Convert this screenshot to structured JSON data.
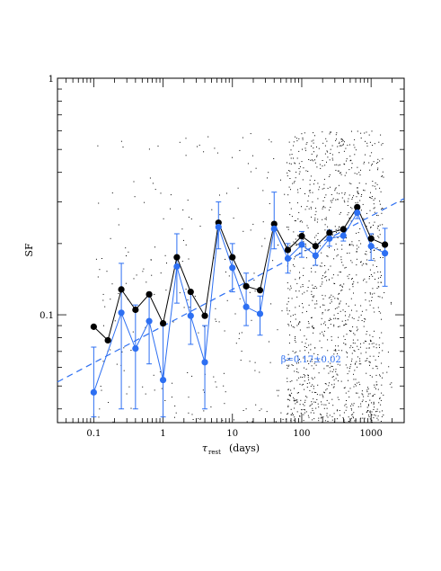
{
  "chart_data": {
    "type": "scatter",
    "title": "",
    "x_scale": "log",
    "y_scale": "log",
    "xlim": [
      0.03,
      3000
    ],
    "ylim": [
      0.035,
      1
    ],
    "xlabel": "τ",
    "xlabel_sub": "rest",
    "xlabel_unit": "(days)",
    "ylabel": "SF",
    "x_ticks": [
      {
        "value": 0.1,
        "label": "0.1"
      },
      {
        "value": 1,
        "label": "1"
      },
      {
        "value": 10,
        "label": "10"
      },
      {
        "value": 100,
        "label": "100"
      },
      {
        "value": 1000,
        "label": "1000"
      }
    ],
    "y_ticks": [
      {
        "value": 0.1,
        "label": "0.1"
      },
      {
        "value": 1,
        "label": "1"
      }
    ],
    "series": [
      {
        "color": "#000000",
        "x": [
          0.1,
          0.16,
          0.25,
          0.4,
          0.63,
          1.0,
          1.58,
          2.5,
          4.0,
          6.3,
          10,
          15.8,
          25,
          40,
          63,
          100,
          158,
          251,
          398,
          631,
          1000,
          1585
        ],
        "y": [
          0.089,
          0.078,
          0.128,
          0.105,
          0.122,
          0.092,
          0.175,
          0.125,
          0.099,
          0.245,
          0.175,
          0.132,
          0.127,
          0.242,
          0.188,
          0.215,
          0.195,
          0.222,
          0.23,
          0.285,
          0.21,
          0.198
        ]
      },
      {
        "color": "#2d6ff2",
        "x": [
          0.1,
          0.25,
          0.4,
          0.63,
          1.0,
          1.58,
          2.5,
          4.0,
          6.3,
          10,
          15.8,
          25,
          40,
          63,
          100,
          158,
          251,
          398,
          631,
          1000,
          1585
        ],
        "y": [
          0.047,
          0.102,
          0.072,
          0.094,
          0.053,
          0.16,
          0.099,
          0.063,
          0.235,
          0.158,
          0.108,
          0.101,
          0.231,
          0.173,
          0.198,
          0.178,
          0.21,
          0.216,
          0.27,
          0.195,
          0.182
        ],
        "err_low": [
          0.037,
          0.04,
          0.04,
          0.062,
          0.037,
          0.112,
          0.075,
          0.04,
          0.19,
          0.125,
          0.09,
          0.082,
          0.19,
          0.15,
          0.175,
          0.162,
          0.195,
          0.205,
          0.255,
          0.17,
          0.132
        ],
        "err_high": [
          0.073,
          0.165,
          0.11,
          0.12,
          0.09,
          0.22,
          0.125,
          0.09,
          0.3,
          0.2,
          0.15,
          0.12,
          0.33,
          0.2,
          0.225,
          0.195,
          0.228,
          0.232,
          0.29,
          0.22,
          0.232
        ]
      }
    ],
    "fit_line": {
      "color": "#2d6ff2",
      "style": "dashed",
      "x": [
        0.03,
        3000
      ],
      "y": [
        0.052,
        0.31
      ]
    },
    "annotation": {
      "text": "β=0.17±0.02",
      "x": 50,
      "y": 0.063,
      "color": "#2d6ff2"
    },
    "background_points": {
      "color": "#000000",
      "x_range": [
        0.1,
        2000
      ],
      "y_range": [
        0.035,
        0.6
      ],
      "concentrated_range": [
        60,
        1500
      ]
    }
  }
}
